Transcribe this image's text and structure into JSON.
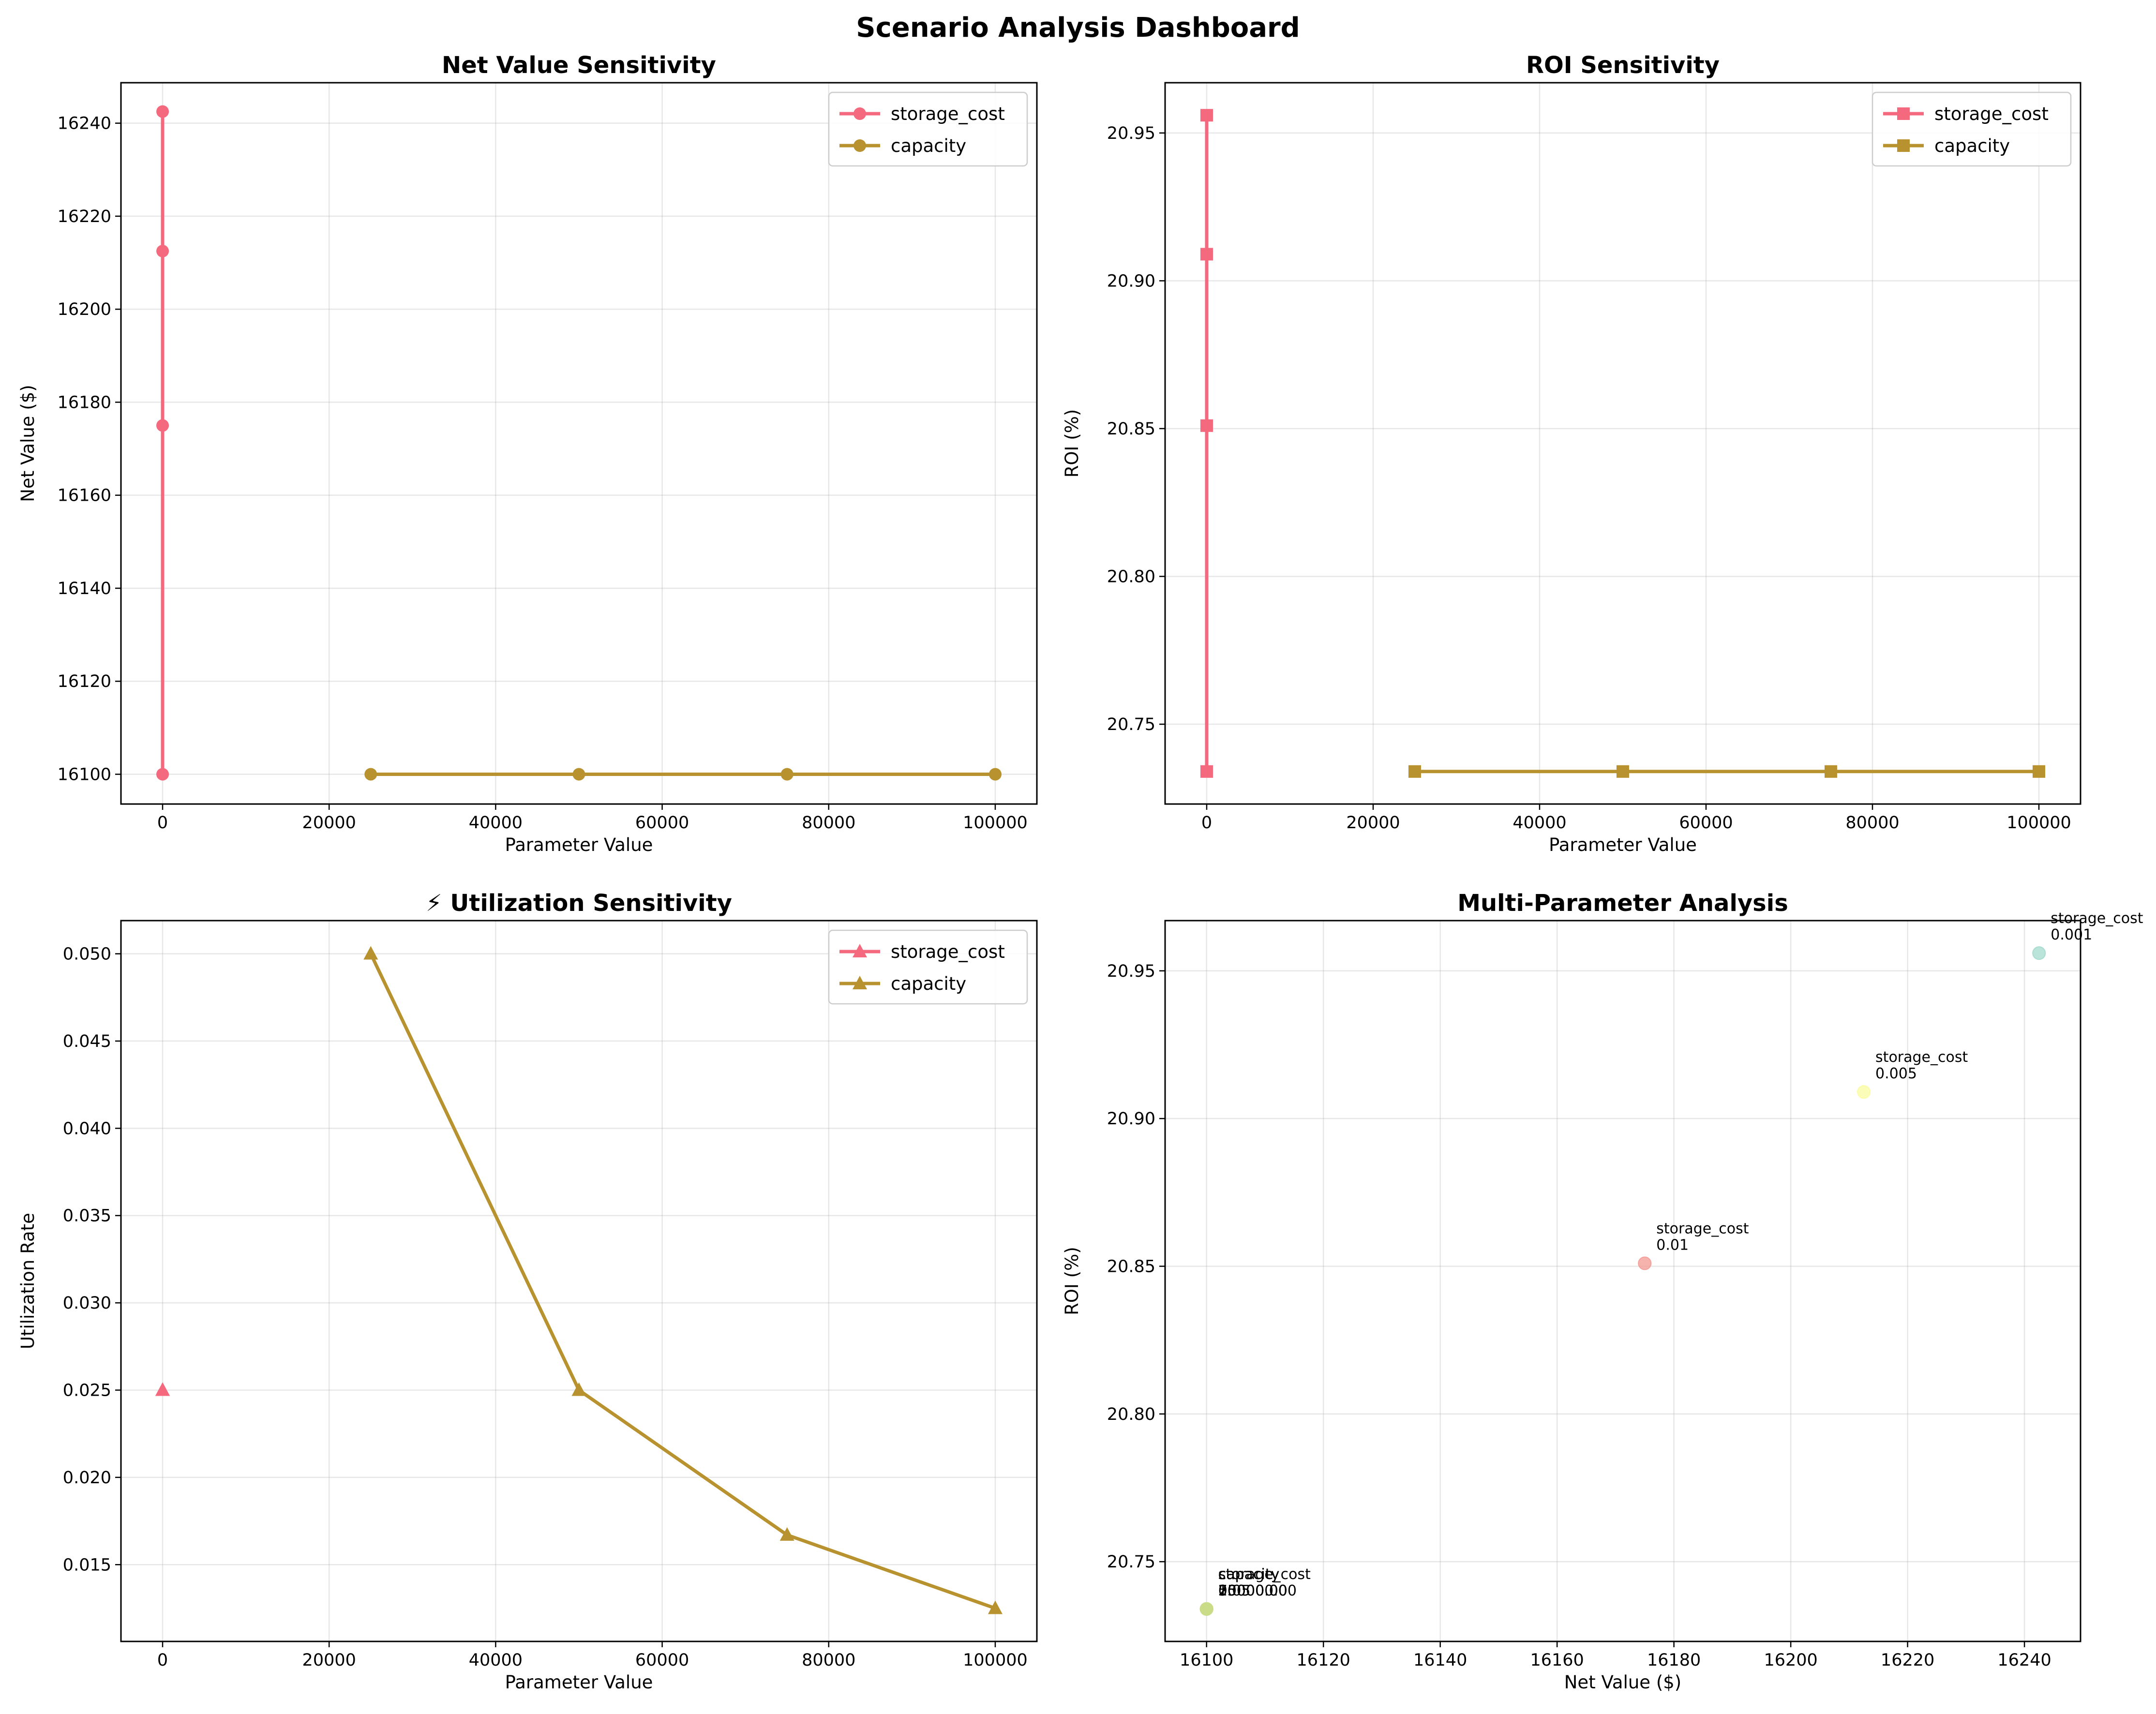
{
  "suptitle": "Scenario Analysis Dashboard",
  "colors": {
    "storage_cost": "#f5697f",
    "capacity": "#b8922e",
    "legend_border": "#cccccc",
    "grid": "#b0b0b0"
  },
  "chart_data": [
    {
      "id": "net_value",
      "type": "line",
      "title": "Net Value Sensitivity",
      "xlabel": "Parameter Value",
      "ylabel": "Net Value ($)",
      "xlim": [
        -5000,
        105000
      ],
      "ylim": [
        16093.6,
        16248.7
      ],
      "xticks": [
        0,
        20000,
        40000,
        60000,
        80000,
        100000
      ],
      "xtick_labels": [
        "0",
        "20000",
        "40000",
        "60000",
        "80000",
        "100000"
      ],
      "yticks": [
        16100,
        16120,
        16140,
        16160,
        16180,
        16200,
        16220,
        16240
      ],
      "ytick_labels": [
        "16100",
        "16120",
        "16140",
        "16160",
        "16180",
        "16200",
        "16220",
        "16240"
      ],
      "marker": "circle",
      "legend": "top-right",
      "grid": true,
      "series": [
        {
          "name": "storage_cost",
          "x": [
            0.01,
            0.005,
            0.001,
            0.05
          ],
          "y": [
            16175,
            16212.5,
            16242.5,
            16100
          ]
        },
        {
          "name": "capacity",
          "x": [
            25000,
            50000,
            75000,
            100000
          ],
          "y": [
            16100,
            16100,
            16100,
            16100
          ]
        }
      ]
    },
    {
      "id": "roi",
      "type": "line",
      "title": "ROI Sensitivity",
      "xlabel": "Parameter Value",
      "ylabel": "ROI (%)",
      "xlim": [
        -5000,
        105000
      ],
      "ylim": [
        20.723,
        20.967
      ],
      "xticks": [
        0,
        20000,
        40000,
        60000,
        80000,
        100000
      ],
      "xtick_labels": [
        "0",
        "20000",
        "40000",
        "60000",
        "80000",
        "100000"
      ],
      "yticks": [
        20.75,
        20.8,
        20.85,
        20.9,
        20.95
      ],
      "ytick_labels": [
        "20.75",
        "20.80",
        "20.85",
        "20.90",
        "20.95"
      ],
      "marker": "square",
      "legend": "top-right",
      "grid": true,
      "series": [
        {
          "name": "storage_cost",
          "x": [
            0.01,
            0.005,
            0.001,
            0.05
          ],
          "y": [
            20.851,
            20.909,
            20.956,
            20.734
          ]
        },
        {
          "name": "capacity",
          "x": [
            25000,
            50000,
            75000,
            100000
          ],
          "y": [
            20.734,
            20.734,
            20.734,
            20.734
          ]
        }
      ]
    },
    {
      "id": "utilization",
      "type": "line",
      "title": "⚡ Utilization Sensitivity",
      "xlabel": "Parameter Value",
      "ylabel": "Utilization Rate",
      "xlim": [
        -5000,
        105000
      ],
      "ylim": [
        0.0106,
        0.0519
      ],
      "xticks": [
        0,
        20000,
        40000,
        60000,
        80000,
        100000
      ],
      "xtick_labels": [
        "0",
        "20000",
        "40000",
        "60000",
        "80000",
        "100000"
      ],
      "yticks": [
        0.015,
        0.02,
        0.025,
        0.03,
        0.035,
        0.04,
        0.045,
        0.05
      ],
      "ytick_labels": [
        "0.015",
        "0.020",
        "0.025",
        "0.030",
        "0.035",
        "0.040",
        "0.045",
        "0.050"
      ],
      "marker": "triangle",
      "legend": "top-right",
      "grid": true,
      "series": [
        {
          "name": "storage_cost",
          "x": [
            0.01,
            0.005,
            0.001,
            0.05
          ],
          "y": [
            0.025,
            0.025,
            0.025,
            0.025
          ]
        },
        {
          "name": "capacity",
          "x": [
            25000,
            50000,
            75000,
            100000
          ],
          "y": [
            0.05,
            0.025,
            0.0167,
            0.0125
          ]
        }
      ]
    },
    {
      "id": "multi",
      "type": "scatter",
      "title": "Multi-Parameter Analysis",
      "xlabel": "Net Value ($)",
      "ylabel": "ROI (%)",
      "xlim": [
        16092.9,
        16249.6
      ],
      "ylim": [
        20.723,
        20.967
      ],
      "xticks": [
        16100,
        16120,
        16140,
        16160,
        16180,
        16200,
        16220,
        16240
      ],
      "xtick_labels": [
        "16100",
        "16120",
        "16140",
        "16160",
        "16180",
        "16200",
        "16220",
        "16240"
      ],
      "yticks": [
        20.75,
        20.8,
        20.85,
        20.9,
        20.95
      ],
      "ytick_labels": [
        "20.75",
        "20.80",
        "20.85",
        "20.90",
        "20.95"
      ],
      "grid": true,
      "points": [
        {
          "x": 16175,
          "y": 20.851,
          "color": "#f4a09a",
          "labels": [
            "storage_cost",
            "0.01"
          ]
        },
        {
          "x": 16212.5,
          "y": 20.909,
          "color": "#fbfba8",
          "labels": [
            "storage_cost",
            "0.005"
          ]
        },
        {
          "x": 16242.5,
          "y": 20.956,
          "color": "#a9dcd0",
          "labels": [
            "storage_cost",
            "0.001"
          ]
        },
        {
          "x": 16100,
          "y": 20.734,
          "color": "#c3dc8f",
          "labels": [
            "storage_cost",
            "0.05"
          ]
        },
        {
          "x": 16100,
          "y": 20.734,
          "color": "#c9dc88",
          "labels": [
            "capacity",
            "25000.00"
          ]
        },
        {
          "x": 16100,
          "y": 20.734,
          "color": "#c9dc88",
          "labels": [
            "capacity",
            "50000.00"
          ]
        },
        {
          "x": 16100,
          "y": 20.734,
          "color": "#c9dc88",
          "labels": [
            "capacity",
            "75000.00"
          ]
        },
        {
          "x": 16100,
          "y": 20.734,
          "color": "#c9dc88",
          "labels": [
            "capacity",
            "100000.00"
          ]
        }
      ]
    }
  ]
}
